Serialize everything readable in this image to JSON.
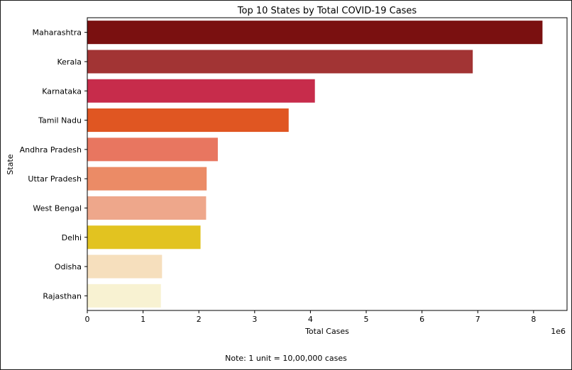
{
  "chart_data": {
    "type": "bar",
    "orientation": "horizontal",
    "title": "Top 10 States by Total COVID-19 Cases",
    "xlabel": "Total Cases",
    "ylabel": "State",
    "x_offset_label": "1e6",
    "xlim": [
      0,
      8.6
    ],
    "xticks": [
      0,
      1,
      2,
      3,
      4,
      5,
      6,
      7,
      8
    ],
    "grid": false,
    "categories": [
      "Maharashtra",
      "Kerala",
      "Karnataka",
      "Tamil Nadu",
      "Andhra Pradesh",
      "Uttar Pradesh",
      "West Bengal",
      "Delhi",
      "Odisha",
      "Rajasthan"
    ],
    "values": [
      8.16,
      6.91,
      4.08,
      3.61,
      2.34,
      2.14,
      2.13,
      2.03,
      1.34,
      1.32
    ],
    "colors": [
      "#7a1010",
      "#a23434",
      "#c72c4b",
      "#e05622",
      "#e87660",
      "#eb8b66",
      "#eea78b",
      "#e2c320",
      "#f6dfbd",
      "#f8f2d2"
    ]
  },
  "note": "Note: 1 unit = 10,00,000 cases"
}
